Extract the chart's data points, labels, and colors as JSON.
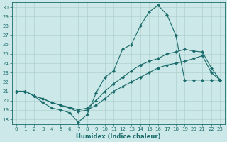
{
  "xlabel": "Humidex (Indice chaleur)",
  "background_color": "#cde8e8",
  "grid_color": "#b0d0d0",
  "line_color": "#1a6b6b",
  "xlim": [
    -0.5,
    23.5
  ],
  "ylim": [
    17.5,
    30.5
  ],
  "xticks": [
    0,
    1,
    2,
    3,
    4,
    5,
    6,
    7,
    8,
    9,
    10,
    11,
    12,
    13,
    14,
    15,
    16,
    17,
    18,
    19,
    20,
    21,
    22,
    23
  ],
  "yticks": [
    18,
    19,
    20,
    21,
    22,
    23,
    24,
    25,
    26,
    27,
    28,
    29,
    30
  ],
  "curve1_x": [
    0,
    1,
    2,
    3,
    4,
    5,
    6,
    7,
    8,
    9,
    10,
    11,
    12,
    13,
    14,
    15,
    16,
    17,
    18,
    19,
    20,
    21,
    22,
    23
  ],
  "curve1_y": [
    21.0,
    21.0,
    20.5,
    19.8,
    19.2,
    19.0,
    18.7,
    17.7,
    18.5,
    20.8,
    22.5,
    23.2,
    25.5,
    26.0,
    28.0,
    29.5,
    30.2,
    29.2,
    27.0,
    22.2,
    22.2,
    22.2,
    22.2,
    22.2
  ],
  "curve2_x": [
    0,
    1,
    2,
    3,
    4,
    5,
    6,
    7,
    8,
    9,
    10,
    11,
    12,
    13,
    14,
    15,
    16,
    17,
    18,
    19,
    20,
    21,
    22,
    23
  ],
  "curve2_y": [
    21.0,
    21.0,
    20.5,
    20.2,
    19.8,
    19.5,
    19.3,
    19.0,
    19.2,
    20.0,
    21.0,
    21.8,
    22.5,
    23.2,
    23.8,
    24.2,
    24.5,
    25.0,
    25.2,
    25.5,
    25.3,
    25.2,
    23.5,
    22.2
  ],
  "curve3_x": [
    0,
    1,
    2,
    3,
    4,
    5,
    6,
    7,
    8,
    9,
    10,
    11,
    12,
    13,
    14,
    15,
    16,
    17,
    18,
    19,
    20,
    21,
    22,
    23
  ],
  "curve3_y": [
    21.0,
    21.0,
    20.5,
    20.2,
    19.8,
    19.5,
    19.2,
    18.8,
    19.0,
    19.5,
    20.2,
    21.0,
    21.5,
    22.0,
    22.5,
    23.0,
    23.5,
    23.8,
    24.0,
    24.2,
    24.5,
    24.8,
    23.0,
    22.2
  ]
}
